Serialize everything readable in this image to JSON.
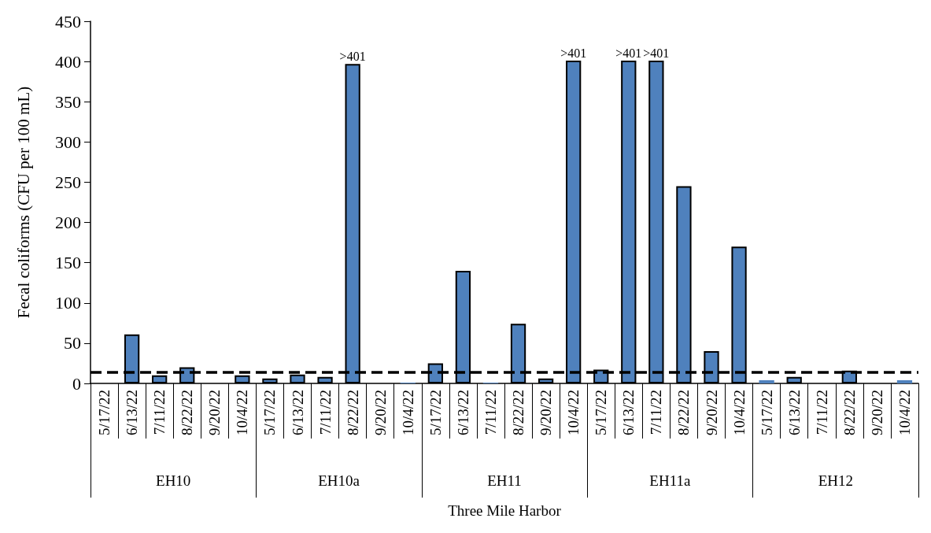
{
  "chart_data": {
    "type": "bar",
    "categories": [
      "5/17/22",
      "6/13/22",
      "7/11/22",
      "8/22/22",
      "9/20/22",
      "10/4/22",
      "5/17/22",
      "6/13/22",
      "7/11/22",
      "8/22/22",
      "9/20/22",
      "10/4/22",
      "5/17/22",
      "6/13/22",
      "7/11/22",
      "8/22/22",
      "9/20/22",
      "10/4/22",
      "5/17/22",
      "6/13/22",
      "7/11/22",
      "8/22/22",
      "9/20/22",
      "10/4/22",
      "5/17/22",
      "6/13/22",
      "7/11/22",
      "8/22/22",
      "9/20/22",
      "10/4/22"
    ],
    "annotations": [
      "EH10",
      "EH10a",
      "EH11",
      "EH11a",
      "EH12"
    ],
    "xlabel": "Three Mile Harbor",
    "ylabel": "Fecal coliforms (CFU per 100 mL)",
    "series": [
      {
        "color": "#4f81bd",
        "values": [
          null,
          61,
          10,
          20,
          null,
          10,
          6,
          11,
          8,
          397,
          null,
          1,
          25,
          140,
          1,
          74,
          6,
          401,
          17,
          401,
          401,
          245,
          40,
          170,
          4,
          8,
          null,
          16,
          null,
          4
        ],
        "value_labels": [
          null,
          null,
          null,
          null,
          null,
          null,
          null,
          null,
          null,
          ">401",
          null,
          null,
          null,
          null,
          null,
          null,
          null,
          ">401",
          null,
          ">401",
          ">401",
          null,
          null,
          null,
          null,
          null,
          null,
          null,
          null,
          null
        ]
      }
    ],
    "ylim": [
      0,
      450
    ],
    "yticks": [
      0,
      50,
      100,
      150,
      200,
      250,
      300,
      350,
      400,
      450
    ],
    "ref_lines": [
      {
        "axis": "y",
        "value": 14,
        "color": "#000000",
        "line_style": "dashed"
      }
    ],
    "grid": false
  }
}
